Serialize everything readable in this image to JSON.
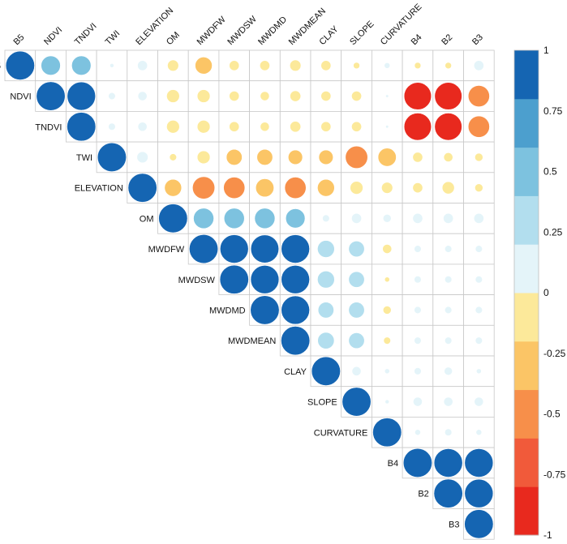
{
  "chart_data": {
    "type": "heatmap",
    "subtype": "correlation-circles-upper-triangle",
    "variables": [
      "B5",
      "NDVI",
      "TNDVI",
      "TWI",
      "ELEVATION",
      "OM",
      "MWDFW",
      "MWDSW",
      "MWDMD",
      "MWDMEAN",
      "CLAY",
      "SLOPE",
      "CURVATURE",
      "B4",
      "B2",
      "B3"
    ],
    "matrix": [
      [
        1,
        0.45,
        0.45,
        0.02,
        0.12,
        -0.15,
        -0.35,
        -0.12,
        -0.12,
        -0.15,
        -0.12,
        -0.05,
        0.04,
        -0.05,
        -0.05,
        0.12
      ],
      [
        null,
        1,
        0.97,
        0.06,
        0.1,
        -0.2,
        -0.2,
        -0.12,
        -0.1,
        -0.14,
        -0.12,
        -0.12,
        0.01,
        -0.9,
        -0.9,
        -0.55
      ],
      [
        null,
        null,
        1,
        0.06,
        0.1,
        -0.2,
        -0.2,
        -0.12,
        -0.1,
        -0.14,
        -0.12,
        -0.12,
        0.01,
        -0.9,
        -0.9,
        -0.55
      ],
      [
        null,
        null,
        null,
        1,
        0.15,
        -0.06,
        -0.2,
        -0.3,
        -0.3,
        -0.25,
        -0.25,
        -0.6,
        -0.4,
        -0.12,
        -0.1,
        -0.08
      ],
      [
        null,
        null,
        null,
        null,
        1,
        -0.35,
        -0.6,
        -0.55,
        -0.4,
        -0.55,
        -0.35,
        -0.2,
        -0.15,
        -0.12,
        -0.18,
        -0.08
      ],
      [
        null,
        null,
        null,
        null,
        null,
        1,
        0.5,
        0.5,
        0.5,
        0.45,
        0.06,
        0.12,
        0.08,
        0.12,
        0.12,
        0.12
      ],
      [
        null,
        null,
        null,
        null,
        null,
        null,
        1,
        0.97,
        0.95,
        0.97,
        0.35,
        0.3,
        -0.1,
        0.06,
        0.06,
        0.06
      ],
      [
        null,
        null,
        null,
        null,
        null,
        null,
        null,
        1,
        0.97,
        0.97,
        0.35,
        0.3,
        -0.03,
        0.06,
        0.06,
        0.06
      ],
      [
        null,
        null,
        null,
        null,
        null,
        null,
        null,
        null,
        1,
        0.97,
        0.3,
        0.3,
        -0.08,
        0.06,
        0.06,
        0.06
      ],
      [
        null,
        null,
        null,
        null,
        null,
        null,
        null,
        null,
        null,
        1,
        0.33,
        0.3,
        -0.06,
        0.06,
        0.06,
        0.06
      ],
      [
        null,
        null,
        null,
        null,
        null,
        null,
        null,
        null,
        null,
        null,
        1,
        0.1,
        0.03,
        0.06,
        0.08,
        0.03
      ],
      [
        null,
        null,
        null,
        null,
        null,
        null,
        null,
        null,
        null,
        null,
        null,
        1,
        0.02,
        0.1,
        0.1,
        0.1
      ],
      [
        null,
        null,
        null,
        null,
        null,
        null,
        null,
        null,
        null,
        null,
        null,
        null,
        1,
        0.04,
        0.06,
        0.04
      ],
      [
        null,
        null,
        null,
        null,
        null,
        null,
        null,
        null,
        null,
        null,
        null,
        null,
        null,
        1,
        0.98,
        0.98
      ],
      [
        null,
        null,
        null,
        null,
        null,
        null,
        null,
        null,
        null,
        null,
        null,
        null,
        null,
        null,
        1,
        0.98
      ],
      [
        null,
        null,
        null,
        null,
        null,
        null,
        null,
        null,
        null,
        null,
        null,
        null,
        null,
        null,
        null,
        1
      ]
    ],
    "colorbar": {
      "ticks": [
        "1",
        "0.75",
        "0.5",
        "0.25",
        "0",
        "-0.25",
        "-0.5",
        "-0.75",
        "-1"
      ],
      "range": [
        -1,
        1
      ],
      "colors": [
        "#E8291E",
        "#F15A3A",
        "#F78F4A",
        "#FBC566",
        "#FCE99A",
        "#E4F4F9",
        "#B2DEEE",
        "#7DC2DF",
        "#4C9FCE",
        "#1565B2"
      ],
      "placement": "right"
    },
    "title": "",
    "xlabel": "",
    "ylabel": ""
  }
}
